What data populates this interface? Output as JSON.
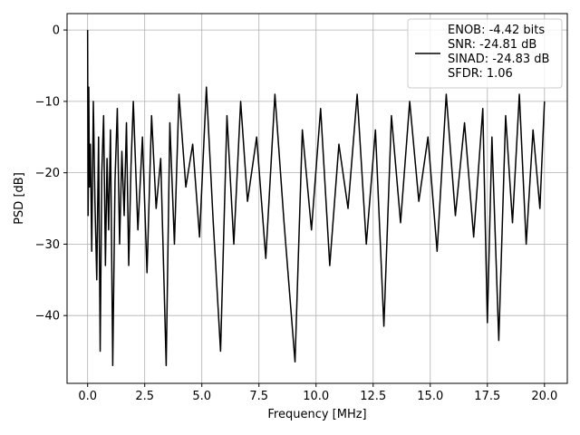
{
  "chart_data": {
    "type": "line",
    "xlabel": "Frequency [MHz]",
    "ylabel": "PSD [dB]",
    "xlim": [
      -0.9,
      21.0
    ],
    "ylim": [
      -49.5,
      2.3
    ],
    "xticks": [
      0.0,
      2.5,
      5.0,
      7.5,
      10.0,
      12.5,
      15.0,
      17.5,
      20.0
    ],
    "xtick_labels": [
      "0.0",
      "2.5",
      "5.0",
      "7.5",
      "10.0",
      "12.5",
      "15.0",
      "17.5",
      "20.0"
    ],
    "yticks": [
      0,
      -10,
      -20,
      -30,
      -40
    ],
    "ytick_labels": [
      "0",
      "−10",
      "−20",
      "−30",
      "−40"
    ],
    "grid": true,
    "legend_position": "top-right",
    "series": [
      {
        "name": "ENOB: -4.42 bits\nSNR: -24.81 dB\nSINAD: -24.83 dB\nSFDR: 1.06",
        "color": "#000000",
        "x": [
          0.0,
          0.02,
          0.05,
          0.08,
          0.12,
          0.18,
          0.25,
          0.32,
          0.4,
          0.48,
          0.55,
          0.62,
          0.7,
          0.78,
          0.85,
          0.92,
          1.0,
          1.1,
          1.2,
          1.3,
          1.4,
          1.5,
          1.6,
          1.7,
          1.8,
          1.9,
          2.0,
          2.2,
          2.4,
          2.6,
          2.8,
          3.0,
          3.2,
          3.44,
          3.6,
          3.8,
          4.0,
          4.3,
          4.6,
          4.9,
          5.2,
          5.5,
          5.82,
          6.1,
          6.4,
          6.7,
          7.0,
          7.4,
          7.8,
          8.2,
          8.6,
          9.08,
          9.4,
          9.8,
          10.2,
          10.6,
          11.0,
          11.4,
          11.8,
          12.2,
          12.6,
          12.97,
          13.3,
          13.7,
          14.1,
          14.5,
          14.9,
          15.3,
          15.7,
          16.1,
          16.5,
          16.9,
          17.3,
          17.5,
          17.7,
          18.0,
          18.3,
          18.6,
          18.9,
          19.2,
          19.5,
          19.8,
          20.0
        ],
        "y": [
          0.0,
          -26.0,
          -8.0,
          -22.0,
          -16.0,
          -31.0,
          -10.0,
          -24.0,
          -35.0,
          -15.0,
          -45.0,
          -20.0,
          -12.0,
          -33.0,
          -18.0,
          -28.0,
          -14.0,
          -47.0,
          -21.0,
          -11.0,
          -30.0,
          -17.0,
          -26.0,
          -13.0,
          -33.0,
          -19.0,
          -10.0,
          -28.0,
          -15.0,
          -34.0,
          -12.0,
          -25.0,
          -18.0,
          -47.0,
          -13.0,
          -30.0,
          -9.0,
          -22.0,
          -16.0,
          -29.0,
          -8.0,
          -27.0,
          -45.0,
          -12.0,
          -30.0,
          -10.0,
          -24.0,
          -15.0,
          -32.0,
          -9.0,
          -27.0,
          -46.5,
          -14.0,
          -28.0,
          -11.0,
          -33.0,
          -16.0,
          -25.0,
          -9.0,
          -30.0,
          -14.0,
          -41.5,
          -12.0,
          -27.0,
          -10.0,
          -24.0,
          -15.0,
          -31.0,
          -9.0,
          -26.0,
          -13.0,
          -29.0,
          -11.0,
          -41.0,
          -15.0,
          -43.5,
          -12.0,
          -27.0,
          -9.0,
          -30.0,
          -14.0,
          -25.0,
          -10.0
        ]
      }
    ]
  }
}
